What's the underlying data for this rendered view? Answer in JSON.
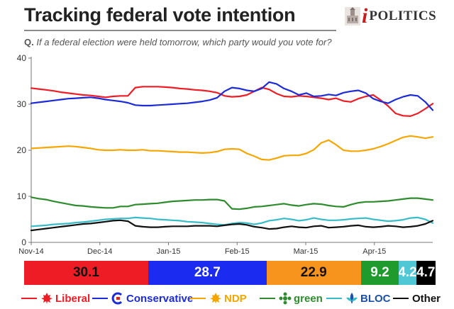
{
  "header": {
    "title": "Tracking federal vote intention",
    "logo_prefix": "i",
    "logo_text": "POLITICS",
    "question_label": "Q.",
    "question": "If a federal election were held tomorrow, which party would you vote for?"
  },
  "chart_data": {
    "type": "line",
    "title": "Tracking federal vote intention",
    "xlabel": "",
    "ylabel": "",
    "ylim": [
      0,
      40
    ],
    "y_ticks": [
      0,
      10,
      20,
      30,
      40
    ],
    "x_ticks": [
      "Nov-14",
      "Dec-14",
      "Jan-15",
      "Feb-15",
      "Mar-15",
      "Apr-15"
    ],
    "grid": false,
    "x": [
      0,
      1,
      2,
      3,
      4,
      5,
      6,
      7,
      8,
      9,
      10,
      11,
      12,
      13,
      14,
      15,
      16,
      17,
      18,
      19,
      20,
      21,
      22,
      23,
      24,
      25,
      26,
      27,
      28,
      29,
      30,
      31,
      32,
      33,
      34,
      35,
      36,
      37,
      38,
      39,
      40,
      41,
      42,
      43,
      44,
      45,
      46,
      47,
      48,
      49,
      50,
      51,
      52,
      53,
      54
    ],
    "series": [
      {
        "name": "Liberal",
        "color": "#ee1c25",
        "values": [
          33.5,
          33.3,
          33.1,
          32.9,
          32.6,
          32.4,
          32.2,
          32.0,
          31.9,
          31.7,
          31.5,
          31.7,
          31.8,
          31.8,
          33.6,
          33.8,
          33.8,
          33.8,
          33.7,
          33.6,
          33.4,
          33.3,
          33.1,
          33.0,
          32.8,
          32.5,
          31.8,
          31.6,
          31.7,
          32.0,
          32.8,
          33.6,
          33.2,
          32.3,
          31.7,
          31.6,
          31.8,
          31.7,
          31.5,
          31.3,
          31.0,
          31.3,
          30.7,
          30.5,
          31.2,
          31.7,
          32.0,
          30.9,
          29.6,
          28.0,
          27.5,
          27.4,
          28.0,
          29.0,
          30.1
        ]
      },
      {
        "name": "Conservative",
        "color": "#1c2bd8",
        "values": [
          30.2,
          30.4,
          30.6,
          30.8,
          31.0,
          31.2,
          31.3,
          31.4,
          31.5,
          31.3,
          31.0,
          30.8,
          30.6,
          30.3,
          29.8,
          29.7,
          29.7,
          29.8,
          29.9,
          30.0,
          30.1,
          30.2,
          30.4,
          30.6,
          30.9,
          31.4,
          32.8,
          33.6,
          33.4,
          33.0,
          32.8,
          33.4,
          34.8,
          34.4,
          33.4,
          32.8,
          32.0,
          32.4,
          31.7,
          31.8,
          32.1,
          31.9,
          32.5,
          32.8,
          33.0,
          32.4,
          31.2,
          30.6,
          30.2,
          31.0,
          31.6,
          32.0,
          31.8,
          30.5,
          28.7
        ]
      },
      {
        "name": "NDP",
        "color": "#f5a600",
        "values": [
          20.4,
          20.5,
          20.6,
          20.7,
          20.8,
          20.9,
          20.8,
          20.6,
          20.4,
          20.1,
          20.0,
          20.0,
          20.1,
          20.0,
          20.0,
          20.1,
          19.9,
          19.9,
          19.8,
          19.7,
          19.6,
          19.6,
          19.5,
          19.4,
          19.5,
          19.7,
          20.2,
          20.3,
          20.2,
          19.3,
          18.7,
          18.0,
          17.9,
          18.3,
          18.8,
          18.9,
          18.9,
          19.3,
          20.1,
          21.6,
          22.2,
          21.2,
          20.0,
          19.8,
          19.8,
          20.0,
          20.3,
          20.8,
          21.4,
          22.1,
          22.8,
          23.1,
          22.9,
          22.6,
          22.9
        ]
      },
      {
        "name": "Green",
        "color": "#2e8b2e",
        "values": [
          9.8,
          9.5,
          9.3,
          8.9,
          8.6,
          8.3,
          8.0,
          7.9,
          7.7,
          7.6,
          7.5,
          7.5,
          7.8,
          7.8,
          8.2,
          8.3,
          8.4,
          8.5,
          8.7,
          8.9,
          9.0,
          9.1,
          9.2,
          9.2,
          9.3,
          9.3,
          9.0,
          7.3,
          7.2,
          7.4,
          7.7,
          7.8,
          8.0,
          8.2,
          8.4,
          8.1,
          7.9,
          8.2,
          8.4,
          8.3,
          8.0,
          7.8,
          7.7,
          8.2,
          8.6,
          8.8,
          8.8,
          8.9,
          9.0,
          9.2,
          9.4,
          9.6,
          9.6,
          9.4,
          9.2
        ]
      },
      {
        "name": "Bloc Québécois",
        "color": "#38bcc7",
        "values": [
          3.5,
          3.6,
          3.7,
          3.9,
          4.0,
          4.1,
          4.3,
          4.4,
          4.6,
          4.8,
          5.0,
          5.1,
          5.2,
          5.2,
          5.4,
          5.3,
          5.2,
          5.0,
          4.9,
          4.8,
          4.7,
          4.5,
          4.4,
          4.3,
          4.1,
          3.9,
          3.8,
          4.1,
          4.3,
          4.2,
          3.9,
          4.2,
          4.7,
          4.9,
          5.2,
          5.0,
          4.7,
          4.9,
          5.3,
          5.0,
          4.8,
          4.8,
          4.9,
          5.1,
          5.2,
          5.3,
          5.0,
          4.8,
          4.6,
          4.7,
          4.9,
          5.3,
          5.4,
          5.0,
          4.2
        ]
      },
      {
        "name": "Other",
        "color": "#111111",
        "values": [
          2.6,
          2.8,
          3.0,
          3.2,
          3.4,
          3.6,
          3.8,
          4.0,
          4.1,
          4.3,
          4.5,
          4.7,
          4.8,
          4.6,
          3.6,
          3.4,
          3.3,
          3.3,
          3.4,
          3.5,
          3.5,
          3.5,
          3.6,
          3.6,
          3.6,
          3.5,
          3.7,
          3.9,
          4.0,
          3.8,
          3.4,
          3.2,
          2.9,
          3.0,
          3.3,
          3.5,
          3.3,
          3.2,
          3.5,
          3.6,
          3.2,
          3.3,
          3.4,
          3.6,
          3.7,
          3.4,
          3.3,
          3.4,
          3.6,
          3.5,
          3.3,
          3.4,
          3.6,
          4.0,
          4.7
        ]
      }
    ]
  },
  "current_bar": {
    "segments": [
      {
        "party": "Liberal",
        "value": 30.1,
        "label": "30.1",
        "color": "#ee1c25",
        "text_color": "#111111"
      },
      {
        "party": "Conservative",
        "value": 28.7,
        "label": "28.7",
        "color": "#1c2bf0",
        "text_color": "#ffffff"
      },
      {
        "party": "NDP",
        "value": 22.9,
        "label": "22.9",
        "color": "#f7941d",
        "text_color": "#111111"
      },
      {
        "party": "Green",
        "value": 9.2,
        "label": "9.2",
        "color": "#1f9a2c",
        "text_color": "#ffffff"
      },
      {
        "party": "Bloc Québécois",
        "value": 4.2,
        "label": "4.2",
        "color": "#4fc7d4",
        "text_color": "#ffffff"
      },
      {
        "party": "Other",
        "value": 4.7,
        "label": "4.7",
        "color": "#000000",
        "text_color": "#ffffff"
      }
    ]
  },
  "legend": {
    "items": [
      {
        "name": "Liberal",
        "color": "#ee1c25",
        "text_color": "#ee1c25",
        "icon": "maple-leaf-icon"
      },
      {
        "name": "Conservative",
        "color": "#1c2bd8",
        "text_color": "#1c2bd8",
        "icon": "conservative-c-icon"
      },
      {
        "name": "NDP",
        "color": "#f5a600",
        "text_color": "#f5a600",
        "icon": "orange-leaf-icon"
      },
      {
        "name": "green",
        "color": "#2e8b2e",
        "text_color": "#2e8b2e",
        "icon": "flower-icon"
      },
      {
        "name": "BLOC",
        "color": "#38bcc7",
        "text_color": "#1c4fa8",
        "icon": "bloc-fleur-icon"
      },
      {
        "name": "Other",
        "color": "#111111",
        "text_color": "#111111",
        "icon": ""
      }
    ]
  }
}
